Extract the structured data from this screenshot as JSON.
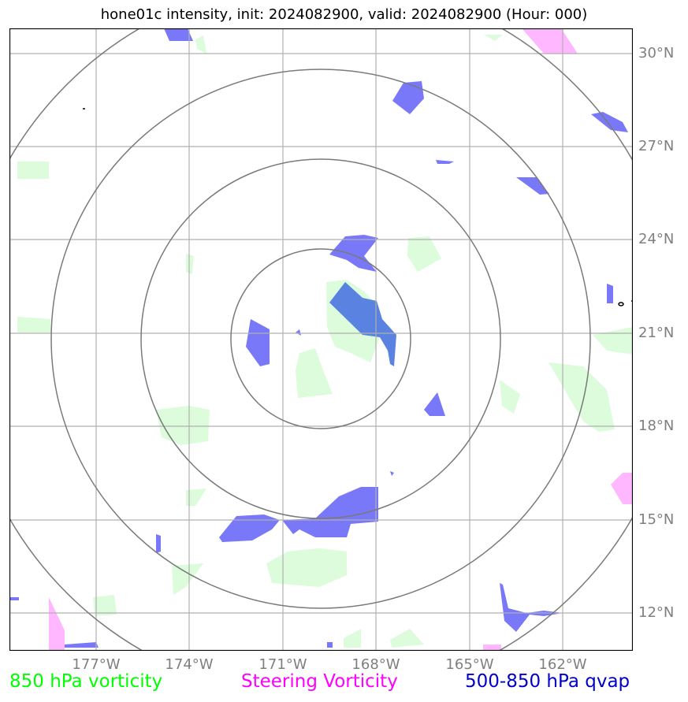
{
  "title": "hone01c intensity, init: 2024082900, valid: 2024082900 (Hour: 000)",
  "lat_labels": [
    "30°N",
    "27°N",
    "24°N",
    "21°N",
    "18°N",
    "15°N",
    "12°N"
  ],
  "lon_labels": [
    "177°W",
    "174°W",
    "171°W",
    "168°W",
    "165°W",
    "162°W"
  ],
  "legend": {
    "vort850": {
      "label": "850 hPa vorticity",
      "color": "#00ff00"
    },
    "steering": {
      "label": "Steering Vorticity",
      "color": "#ff00ff"
    },
    "qvap": {
      "label": "500-850 hPa qvap",
      "color": "#0000cc"
    }
  },
  "colors": {
    "vort850_fill": "#dcfcdc",
    "steering_fill": "#ffb8ff",
    "qvap_fill": "#7878f8",
    "qvap_core": "#5a82e0",
    "grid": "#b0b0b0",
    "range_rings": "#7a7a7a",
    "frame": "#000000"
  }
}
